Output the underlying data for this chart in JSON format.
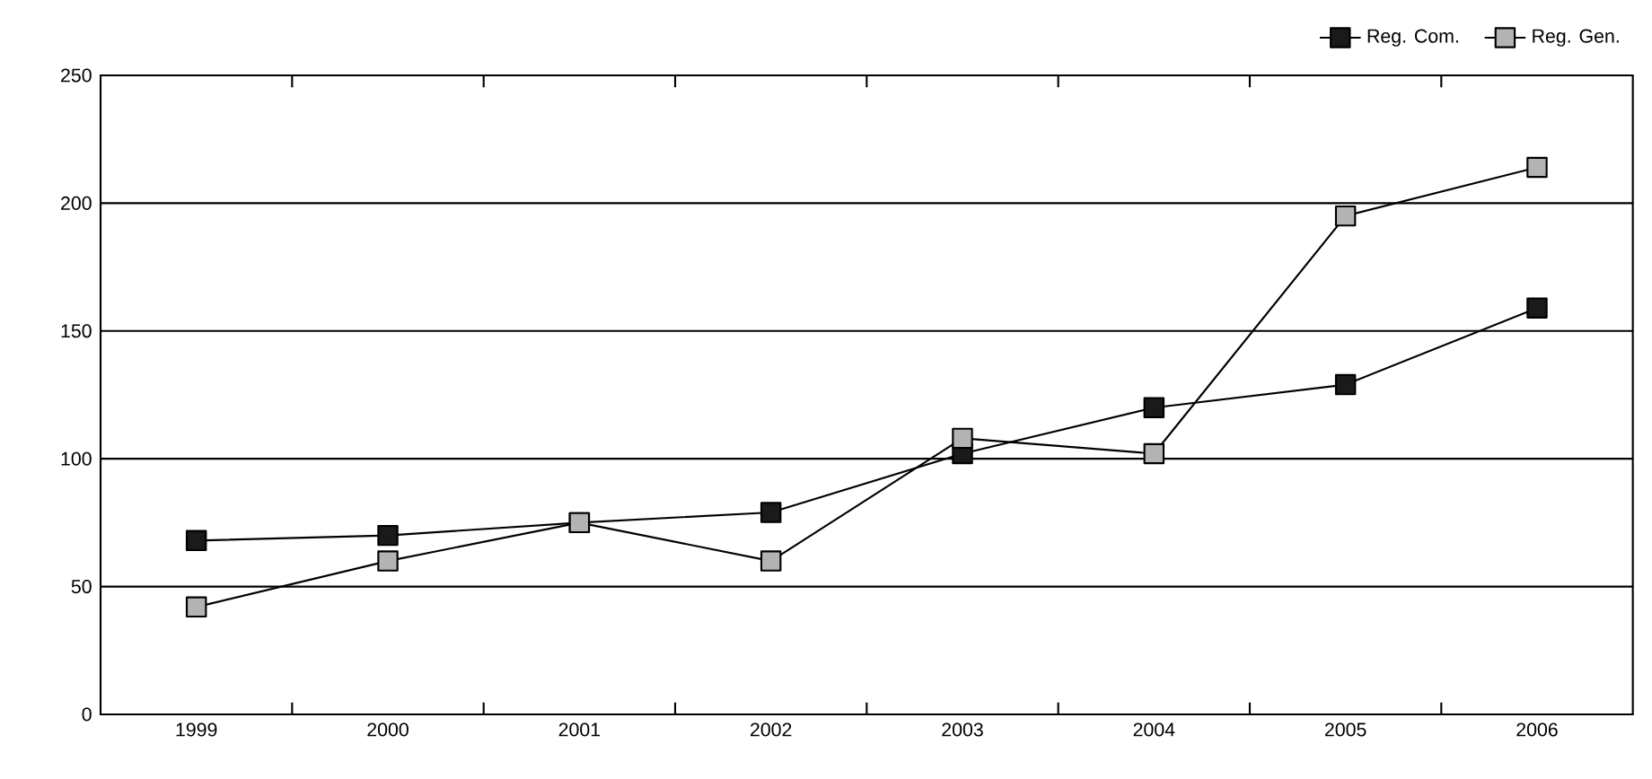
{
  "chart_data": {
    "type": "line",
    "categories": [
      "1999",
      "2000",
      "2001",
      "2002",
      "2003",
      "2004",
      "2005",
      "2006"
    ],
    "series": [
      {
        "name": "Reg. Com.",
        "color": "#1a1a1a",
        "values": [
          68,
          70,
          75,
          79,
          102,
          120,
          129,
          159
        ]
      },
      {
        "name": "Reg. Gen.",
        "color": "#b3b3b3",
        "values": [
          42,
          60,
          75,
          60,
          108,
          102,
          195,
          214
        ]
      }
    ],
    "ylim": [
      0,
      250
    ],
    "yticks": [
      0,
      50,
      100,
      150,
      200,
      250
    ],
    "grid": "y",
    "legend": "top right",
    "marker": "square",
    "line_style": "solid"
  }
}
